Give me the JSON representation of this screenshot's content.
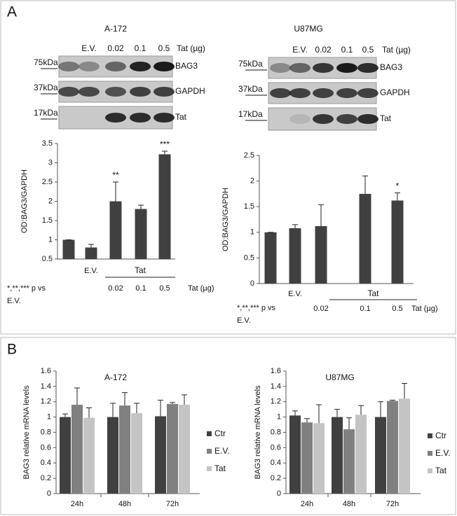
{
  "panels": [
    "A",
    "B"
  ],
  "blots": [
    {
      "title": "A-172",
      "lanes": [
        "E.V.",
        "0.02",
        "0.1",
        "0.5"
      ],
      "lane_unit": "Tat (µg)",
      "rows": [
        {
          "marker": "75kDa",
          "label": "BAG3"
        },
        {
          "marker": "37kDa",
          "label": "GAPDH"
        },
        {
          "marker": "17kDa",
          "label": "Tat"
        }
      ]
    },
    {
      "title": "U87MG",
      "lanes": [
        "E.V.",
        "0.02",
        "0.1",
        "0.5"
      ],
      "lane_unit": "Tat (µg)",
      "rows": [
        {
          "marker": "75kDa",
          "label": "BAG3"
        },
        {
          "marker": "37kDa",
          "label": "GAPDH"
        },
        {
          "marker": "17kDa",
          "label": "Tat"
        }
      ]
    }
  ],
  "chart_data": [
    {
      "type": "bar",
      "ylabel": "OD:BAG3/GAPDH",
      "categories": [
        null,
        "E.V.",
        "0.02",
        "0.1",
        "0.5"
      ],
      "values": [
        1.0,
        0.8,
        2.0,
        1.8,
        3.22
      ],
      "errors": [
        0,
        0.08,
        0.5,
        0.1,
        0.08
      ],
      "significance": [
        null,
        null,
        "**",
        null,
        "***"
      ],
      "group_label": "Tat",
      "unit_label": "Tat (µg)",
      "note": [
        "*,**,*** p vs",
        "E.V."
      ],
      "color": "#404040",
      "ylim": [
        0.5,
        3.5
      ],
      "yticks": [
        0.5,
        1,
        1.5,
        2,
        2.5,
        3,
        3.5
      ]
    },
    {
      "type": "bar",
      "ylabel": "OD:BAG3/GAPDH",
      "categories": [
        null,
        "E.V.",
        "0.02",
        "0.1",
        "0.5"
      ],
      "values": [
        1.0,
        1.08,
        1.12,
        1.75,
        1.62
      ],
      "errors": [
        0,
        0.07,
        0.42,
        0.35,
        0.15
      ],
      "significance": [
        null,
        null,
        null,
        null,
        "*"
      ],
      "group_label": "Tat",
      "unit_label": "Tat (µg)",
      "note": [
        "*,**,*** p vs",
        "E.V."
      ],
      "color": "#404040",
      "ylim": [
        0,
        2.5
      ],
      "yticks": [
        0,
        0.5,
        1,
        1.5,
        2,
        2.5
      ]
    },
    {
      "type": "grouped_bar",
      "title": "A-172",
      "ylabel": "BAG3 relative mRNA levels",
      "categories": [
        "24h",
        "48h",
        "72h"
      ],
      "series": [
        {
          "name": "Ctr",
          "color": "#404040",
          "values": [
            1.0,
            1.0,
            1.01
          ],
          "errors": [
            0.04,
            0.18,
            0.21
          ]
        },
        {
          "name": "E.V.",
          "color": "#808080",
          "values": [
            1.16,
            1.15,
            1.17
          ],
          "errors": [
            0.22,
            0.17,
            0.02
          ]
        },
        {
          "name": "Tat",
          "color": "#c4c4c4",
          "values": [
            0.99,
            1.05,
            1.16
          ],
          "errors": [
            0.13,
            0.13,
            0.13
          ]
        }
      ],
      "ylim": [
        0,
        1.6
      ],
      "yticks": [
        0,
        0.2,
        0.4,
        0.6,
        0.8,
        1,
        1.2,
        1.4,
        1.6
      ],
      "legend": "right"
    },
    {
      "type": "grouped_bar",
      "title": "U87MG",
      "ylabel": "BAG3 relative mRNA levels",
      "categories": [
        "24h",
        "48h",
        "72h"
      ],
      "series": [
        {
          "name": "Ctr",
          "color": "#404040",
          "values": [
            1.02,
            1.0,
            1.0
          ],
          "errors": [
            0.06,
            0.1,
            0.2
          ]
        },
        {
          "name": "E.V.",
          "color": "#808080",
          "values": [
            0.93,
            0.84,
            1.21
          ],
          "errors": [
            0.05,
            0.15,
            0.01
          ]
        },
        {
          "name": "Tat",
          "color": "#c4c4c4",
          "values": [
            0.92,
            1.03,
            1.24
          ],
          "errors": [
            0.24,
            0.12,
            0.2
          ]
        }
      ],
      "ylim": [
        0,
        1.6
      ],
      "yticks": [
        0,
        0.2,
        0.4,
        0.6,
        0.8,
        1,
        1.2,
        1.4,
        1.6
      ],
      "legend": "right"
    }
  ]
}
